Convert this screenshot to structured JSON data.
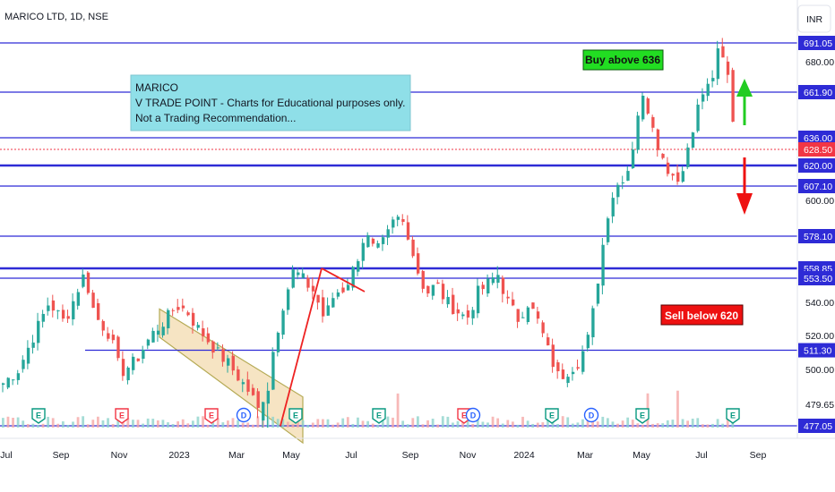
{
  "header": {
    "title": "MARICO LTD, 1D, NSE",
    "currency_button": "INR"
  },
  "note": {
    "lines": [
      "MARICO",
      "V TRADE POINT - Charts for Educational purposes only.",
      "Not a Trading Recommendation..."
    ],
    "background": "#8fdfe8"
  },
  "callouts": {
    "buy": {
      "label": "Buy above 636",
      "background": "#22dd22"
    },
    "sell": {
      "label": "Sell below 620",
      "background": "#ee1111"
    }
  },
  "colors": {
    "level_line": "#2e2bd6",
    "up_candle": "#26a69a",
    "down_candle": "#ef5350",
    "trend_line": "#ee2222",
    "channel_fill": "#f5dfb8",
    "current_price": "#f23645",
    "arrow_up": "#22cc22",
    "arrow_down": "#ee1111"
  },
  "events": {
    "earnings_label": "E",
    "dividend_label": "D",
    "earnings_color": "#089981",
    "earnings_color_alt": "#f23645",
    "dividend_color": "#2962ff"
  },
  "chart_data": {
    "type": "candlestick",
    "symbol": "MARICO LTD",
    "interval": "1D",
    "exchange": "NSE",
    "currency": "INR",
    "x_ticks": [
      "Jul",
      "Sep",
      "Nov",
      "2023",
      "Mar",
      "May",
      "Jul",
      "Sep",
      "Nov",
      "2024",
      "Mar",
      "May",
      "Jul",
      "Sep"
    ],
    "y_ticks": [
      680.0,
      600.0,
      540.0,
      520.0,
      500.0,
      479.65
    ],
    "horizontal_levels": [
      691.05,
      661.9,
      636.0,
      620.0,
      607.1,
      578.1,
      558.85,
      553.5,
      511.3,
      477.05
    ],
    "current_price": 628.5,
    "price_path": [
      [
        0,
        492
      ],
      [
        3,
        500
      ],
      [
        6,
        520
      ],
      [
        9,
        540
      ],
      [
        12,
        528
      ],
      [
        15,
        550
      ],
      [
        16,
        556
      ],
      [
        18,
        532
      ],
      [
        21,
        520
      ],
      [
        23,
        498
      ],
      [
        26,
        505
      ],
      [
        29,
        520
      ],
      [
        32,
        530
      ],
      [
        34,
        538
      ],
      [
        36,
        535
      ],
      [
        38,
        525
      ],
      [
        40,
        518
      ],
      [
        42,
        510
      ],
      [
        44,
        504
      ],
      [
        46,
        496
      ],
      [
        48,
        488
      ],
      [
        50,
        478
      ],
      [
        52,
        490
      ],
      [
        53,
        512
      ],
      [
        55,
        540
      ],
      [
        57,
        558
      ],
      [
        59,
        552
      ],
      [
        61,
        546
      ],
      [
        63,
        530
      ],
      [
        65,
        545
      ],
      [
        67,
        548
      ],
      [
        69,
        560
      ],
      [
        71,
        580
      ],
      [
        73,
        568
      ],
      [
        75,
        576
      ],
      [
        77,
        590
      ],
      [
        79,
        585
      ],
      [
        81,
        560
      ],
      [
        83,
        545
      ],
      [
        85,
        550
      ],
      [
        87,
        540
      ],
      [
        89,
        535
      ],
      [
        91,
        530
      ],
      [
        93,
        545
      ],
      [
        95,
        550
      ],
      [
        97,
        556
      ],
      [
        99,
        540
      ],
      [
        101,
        530
      ],
      [
        103,
        540
      ],
      [
        105,
        528
      ],
      [
        107,
        510
      ],
      [
        109,
        495
      ],
      [
        111,
        500
      ],
      [
        113,
        505
      ],
      [
        115,
        520
      ],
      [
        116,
        540
      ],
      [
        117,
        560
      ],
      [
        119,
        600
      ],
      [
        121,
        610
      ],
      [
        123,
        620
      ],
      [
        124,
        640
      ],
      [
        125,
        660
      ],
      [
        127,
        650
      ],
      [
        129,
        625
      ],
      [
        131,
        615
      ],
      [
        133,
        612
      ],
      [
        135,
        640
      ],
      [
        137,
        660
      ],
      [
        139,
        668
      ],
      [
        140,
        685
      ],
      [
        141,
        682
      ],
      [
        142,
        675
      ],
      [
        143,
        650
      ],
      [
        144,
        628
      ]
    ],
    "trend_lines": [
      {
        "from": [
          "May-2023",
          477.05
        ],
        "to": [
          "Jun-2023",
          558.85
        ]
      },
      {
        "from": [
          "Jun-2023",
          558.85
        ],
        "to": [
          "Jul-2023",
          546.0
        ]
      }
    ],
    "channel": {
      "type": "descending",
      "from": "Jan-2023",
      "to": "May-2023",
      "upper": [
        536,
        484
      ],
      "lower": [
        519,
        467
      ]
    },
    "annotations": [
      {
        "text": "Buy above 636",
        "arrow": "up",
        "at_price": 650
      },
      {
        "text": "Sell below 620",
        "arrow": "down",
        "at_price": 607
      }
    ]
  }
}
